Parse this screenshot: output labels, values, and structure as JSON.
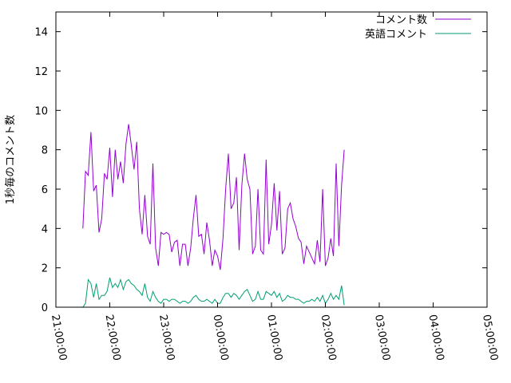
{
  "chart_data": {
    "type": "line",
    "ylabel": "1秒毎のコメント数",
    "xlim": [
      "21:00:00",
      "05:00:00"
    ],
    "ylim": [
      0,
      15
    ],
    "x_ticks": [
      "21:00:00",
      "22:00:00",
      "23:00:00",
      "00:00:00",
      "01:00:00",
      "02:00:00",
      "03:00:00",
      "04:00:00",
      "05:00:00"
    ],
    "y_ticks": [
      "0",
      "2",
      "4",
      "6",
      "8",
      "10",
      "12",
      "14"
    ],
    "grid": false,
    "legend_position": "top-right",
    "series": [
      {
        "name": "コメント数",
        "color": "#9400d3",
        "x_start": "21:30:00",
        "x_step_minutes": 3,
        "values": [
          4.0,
          6.9,
          6.7,
          8.9,
          5.9,
          6.2,
          3.8,
          4.5,
          6.8,
          6.5,
          8.1,
          5.6,
          8.0,
          6.5,
          7.4,
          6.3,
          8.3,
          9.3,
          8.2,
          7.0,
          8.4,
          5.0,
          3.7,
          5.7,
          3.6,
          3.2,
          7.3,
          3.0,
          2.1,
          3.8,
          3.7,
          3.8,
          3.7,
          2.8,
          3.3,
          3.4,
          2.1,
          3.2,
          3.2,
          2.1,
          3.0,
          4.5,
          5.7,
          3.6,
          3.7,
          2.7,
          4.3,
          3.4,
          2.1,
          2.9,
          2.6,
          1.9,
          3.5,
          6.0,
          7.8,
          5.0,
          5.3,
          6.6,
          2.9,
          6.2,
          7.8,
          6.5,
          6.0,
          2.7,
          3.1,
          6.0,
          2.9,
          2.7,
          7.5,
          3.2,
          4.2,
          6.3,
          3.9,
          5.9,
          2.7,
          3.0,
          5.0,
          5.3,
          4.5,
          4.1,
          3.5,
          3.3,
          2.2,
          3.1,
          2.8,
          2.5,
          2.2,
          3.4,
          2.3,
          6.0,
          2.1,
          2.5,
          3.5,
          2.6,
          7.3,
          3.1,
          6.2,
          8.0
        ]
      },
      {
        "name": "英語コメント",
        "color": "#009e73",
        "x_start": "21:30:00",
        "x_step_minutes": 3,
        "values": [
          0.0,
          0.2,
          1.4,
          1.2,
          0.5,
          1.2,
          0.4,
          0.6,
          0.6,
          0.8,
          1.5,
          1.0,
          1.2,
          1.0,
          1.4,
          0.9,
          1.3,
          1.4,
          1.2,
          1.1,
          0.9,
          0.8,
          0.6,
          1.2,
          0.5,
          0.3,
          0.8,
          0.5,
          0.3,
          0.2,
          0.4,
          0.4,
          0.3,
          0.4,
          0.4,
          0.3,
          0.2,
          0.3,
          0.3,
          0.2,
          0.3,
          0.5,
          0.6,
          0.4,
          0.3,
          0.3,
          0.4,
          0.3,
          0.2,
          0.4,
          0.2,
          0.2,
          0.5,
          0.7,
          0.7,
          0.5,
          0.7,
          0.6,
          0.4,
          0.6,
          0.8,
          0.9,
          0.6,
          0.3,
          0.4,
          0.8,
          0.4,
          0.4,
          0.8,
          0.7,
          0.6,
          0.8,
          0.5,
          0.7,
          0.3,
          0.4,
          0.6,
          0.5,
          0.5,
          0.4,
          0.4,
          0.3,
          0.2,
          0.3,
          0.3,
          0.4,
          0.3,
          0.5,
          0.3,
          0.6,
          0.2,
          0.4,
          0.7,
          0.4,
          0.6,
          0.4,
          1.1,
          0.1
        ]
      }
    ]
  }
}
